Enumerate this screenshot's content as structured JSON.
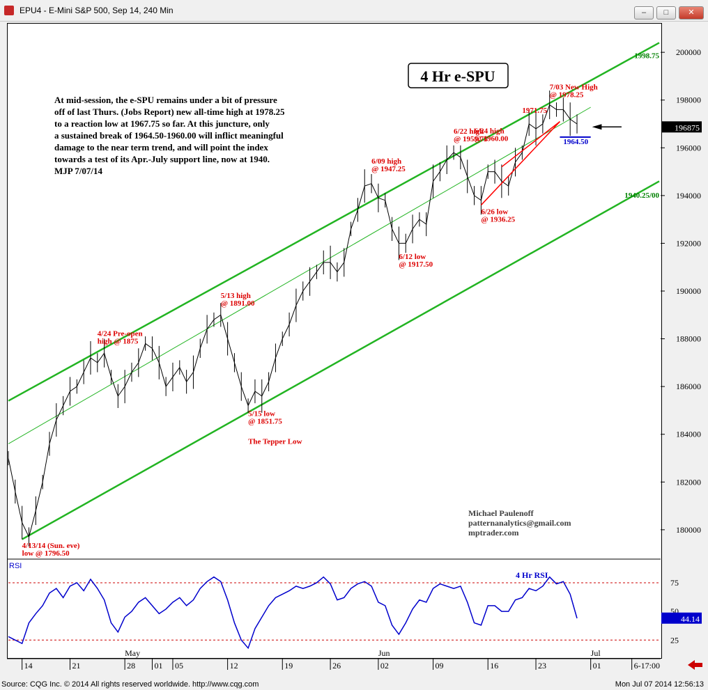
{
  "window": {
    "title": "EPU4 - E-Mini S&P 500, Sep 14, 240 Min",
    "buttons": [
      "minimize",
      "restore",
      "maximize",
      "close"
    ]
  },
  "footer": {
    "source": "Source: CQG Inc. © 2014 All rights reserved worldwide. http://www.cqg.com",
    "timestamp": "Mon Jul 07 2014 12:56:13"
  },
  "colors": {
    "price": "#000000",
    "channel": "#22b422",
    "annotation_red": "#dd0000",
    "rsi_line": "#0000cc",
    "support_blue": "#0000cc",
    "label_green": "#008000"
  },
  "chart_data": [
    {
      "type": "line",
      "title": "4 Hr e-SPU",
      "commentary": [
        "At mid-session, the e-SPU remains under a bit of pressure",
        "off of last Thurs. (Jobs Report) new all-time high at 1978.25",
        "to a reaction low at 1967.75 so far. At this juncture, only",
        "a sustained break of 1964.50-1960.00 will inflict meaningful",
        "damage to the near term trend, and will point the index",
        "towards a test of its Apr.-July support line, now at 1940.",
        "MJP  7/07/14"
      ],
      "author": [
        "Michael Paulenoff",
        "patternanalytics@gmail.com",
        "mptrader.com"
      ],
      "y_ticks": [
        "200000",
        "198000",
        "196000",
        "194000",
        "192000",
        "190000",
        "188000",
        "186000",
        "184000",
        "182000",
        "180000"
      ],
      "ylim": [
        1788,
        2012
      ],
      "last_price_label": "196875",
      "month_labels": [
        {
          "label": "May",
          "x": 17
        },
        {
          "label": "Jun",
          "x": 54
        },
        {
          "label": "Jul",
          "x": 85
        }
      ],
      "x_ticks": [
        {
          "label": "14",
          "x": 2
        },
        {
          "label": "21",
          "x": 9
        },
        {
          "label": "28",
          "x": 17
        },
        {
          "label": "01",
          "x": 21
        },
        {
          "label": "05",
          "x": 24
        },
        {
          "label": "12",
          "x": 32
        },
        {
          "label": "19",
          "x": 40
        },
        {
          "label": "26",
          "x": 47
        },
        {
          "label": "02",
          "x": 54
        },
        {
          "label": "09",
          "x": 62
        },
        {
          "label": "16",
          "x": 70
        },
        {
          "label": "23",
          "x": 77
        },
        {
          "label": "01",
          "x": 85
        },
        {
          "label": "6-17:00",
          "x": 91
        }
      ],
      "price_points": [
        [
          0,
          1830
        ],
        [
          1,
          1816
        ],
        [
          2,
          1803
        ],
        [
          3,
          1797
        ],
        [
          4,
          1808
        ],
        [
          5,
          1820
        ],
        [
          6,
          1836
        ],
        [
          7,
          1846
        ],
        [
          8,
          1852
        ],
        [
          9,
          1858
        ],
        [
          10,
          1860
        ],
        [
          11,
          1866
        ],
        [
          12,
          1872
        ],
        [
          13,
          1870
        ],
        [
          14,
          1874
        ],
        [
          15,
          1864
        ],
        [
          16,
          1856
        ],
        [
          17,
          1860
        ],
        [
          18,
          1866
        ],
        [
          19,
          1870
        ],
        [
          20,
          1878
        ],
        [
          21,
          1876
        ],
        [
          22,
          1870
        ],
        [
          23,
          1860
        ],
        [
          24,
          1864
        ],
        [
          25,
          1868
        ],
        [
          26,
          1862
        ],
        [
          27,
          1866
        ],
        [
          28,
          1876
        ],
        [
          29,
          1884
        ],
        [
          30,
          1888
        ],
        [
          31,
          1890
        ],
        [
          32,
          1880
        ],
        [
          33,
          1870
        ],
        [
          34,
          1860
        ],
        [
          35,
          1852
        ],
        [
          36,
          1858
        ],
        [
          37,
          1856
        ],
        [
          38,
          1862
        ],
        [
          39,
          1872
        ],
        [
          40,
          1880
        ],
        [
          41,
          1886
        ],
        [
          42,
          1894
        ],
        [
          43,
          1900
        ],
        [
          44,
          1904
        ],
        [
          45,
          1908
        ],
        [
          46,
          1912
        ],
        [
          47,
          1912
        ],
        [
          48,
          1908
        ],
        [
          49,
          1912
        ],
        [
          50,
          1926
        ],
        [
          51,
          1934
        ],
        [
          52,
          1944
        ],
        [
          53,
          1945
        ],
        [
          54,
          1939
        ],
        [
          55,
          1938
        ],
        [
          56,
          1926
        ],
        [
          57,
          1920
        ],
        [
          58,
          1920
        ],
        [
          59,
          1926
        ],
        [
          60,
          1930
        ],
        [
          61,
          1928
        ],
        [
          62,
          1946
        ],
        [
          63,
          1950
        ],
        [
          64,
          1955
        ],
        [
          65,
          1958
        ],
        [
          66,
          1956
        ],
        [
          67,
          1948
        ],
        [
          68,
          1940
        ],
        [
          69,
          1938
        ],
        [
          70,
          1950
        ],
        [
          71,
          1950
        ],
        [
          72,
          1946
        ],
        [
          73,
          1944
        ],
        [
          74,
          1954
        ],
        [
          75,
          1958
        ],
        [
          76,
          1970
        ],
        [
          77,
          1968
        ],
        [
          78,
          1970
        ],
        [
          79,
          1978
        ],
        [
          80,
          1976
        ],
        [
          81,
          1976
        ],
        [
          82,
          1972
        ],
        [
          83,
          1970
        ]
      ],
      "trendlines": [
        {
          "name": "upper-channel",
          "points": [
            [
              0,
              1854
            ],
            [
              95,
              2004
            ]
          ]
        },
        {
          "name": "middle-line",
          "points": [
            [
              0,
              1836
            ],
            [
              85,
              1977
            ]
          ]
        },
        {
          "name": "lower-channel",
          "points": [
            [
              2,
              1796
            ],
            [
              95,
              1946
            ]
          ]
        }
      ],
      "annotations": [
        {
          "text": [
            "4/13/14 (Sun. eve)",
            "low @ 1796.50"
          ],
          "x": 2,
          "y": 1796.5,
          "color": "red"
        },
        {
          "text": [
            "4/24 Pre-open",
            "high @ 1875"
          ],
          "x": 13,
          "y": 1875,
          "color": "red"
        },
        {
          "text": [
            "5/13 high",
            "@ 1891.00"
          ],
          "x": 31,
          "y": 1891,
          "color": "red"
        },
        {
          "text": [
            "5/15 low",
            "@ 1851.75"
          ],
          "x": 35,
          "y": 1851.75,
          "color": "red"
        },
        {
          "text": [
            "The Tepper Low"
          ],
          "x": 35,
          "y": 1840,
          "color": "red"
        },
        {
          "text": [
            "6/09 high",
            "@ 1947.25"
          ],
          "x": 53,
          "y": 1947.25,
          "color": "red"
        },
        {
          "text": [
            "6/12 low",
            "@ 1917.50"
          ],
          "x": 57,
          "y": 1917.5,
          "color": "red"
        },
        {
          "text": [
            "6/22 high",
            "@ 1959.75"
          ],
          "x": 65,
          "y": 1959.75,
          "color": "red"
        },
        {
          "text": [
            "6/24 high",
            "@ 1960.00"
          ],
          "x": 68,
          "y": 1960,
          "color": "red"
        },
        {
          "text": [
            "6/26 low",
            "@ 1936.25"
          ],
          "x": 69,
          "y": 1936.25,
          "color": "red"
        },
        {
          "text": [
            "1971.75"
          ],
          "x": 75,
          "y": 1971.75,
          "color": "red"
        },
        {
          "text": [
            "7/03 New High",
            "@ 1978.25"
          ],
          "x": 79,
          "y": 1978.25,
          "color": "red"
        },
        {
          "text": [
            "1964.50"
          ],
          "x": 81,
          "y": 1964.5,
          "color": "blue"
        },
        {
          "text": [
            "1998.75"
          ],
          "x": 95,
          "y": 1998.75,
          "color": "green"
        },
        {
          "text": [
            "1940.25/00"
          ],
          "x": 95,
          "y": 1940.25,
          "color": "green"
        }
      ]
    },
    {
      "type": "line",
      "name": "RSI",
      "title": "4 Hr RSI",
      "ylim": [
        10,
        95
      ],
      "y_ticks": [
        "75",
        "50",
        "25"
      ],
      "last_value_label": "44.14",
      "levels": [
        75,
        25
      ],
      "values": [
        [
          0,
          28
        ],
        [
          1,
          25
        ],
        [
          2,
          22
        ],
        [
          3,
          40
        ],
        [
          4,
          48
        ],
        [
          5,
          55
        ],
        [
          6,
          66
        ],
        [
          7,
          70
        ],
        [
          8,
          62
        ],
        [
          9,
          72
        ],
        [
          10,
          75
        ],
        [
          11,
          68
        ],
        [
          12,
          78
        ],
        [
          13,
          70
        ],
        [
          14,
          60
        ],
        [
          15,
          40
        ],
        [
          16,
          32
        ],
        [
          17,
          45
        ],
        [
          18,
          50
        ],
        [
          19,
          58
        ],
        [
          20,
          62
        ],
        [
          21,
          55
        ],
        [
          22,
          48
        ],
        [
          23,
          52
        ],
        [
          24,
          58
        ],
        [
          25,
          62
        ],
        [
          26,
          55
        ],
        [
          27,
          60
        ],
        [
          28,
          70
        ],
        [
          29,
          76
        ],
        [
          30,
          80
        ],
        [
          31,
          76
        ],
        [
          32,
          60
        ],
        [
          33,
          40
        ],
        [
          34,
          25
        ],
        [
          35,
          18
        ],
        [
          36,
          35
        ],
        [
          37,
          45
        ],
        [
          38,
          55
        ],
        [
          39,
          62
        ],
        [
          40,
          65
        ],
        [
          41,
          68
        ],
        [
          42,
          72
        ],
        [
          43,
          70
        ],
        [
          44,
          72
        ],
        [
          45,
          75
        ],
        [
          46,
          80
        ],
        [
          47,
          74
        ],
        [
          48,
          60
        ],
        [
          49,
          62
        ],
        [
          50,
          70
        ],
        [
          51,
          74
        ],
        [
          52,
          76
        ],
        [
          53,
          72
        ],
        [
          54,
          58
        ],
        [
          55,
          55
        ],
        [
          56,
          38
        ],
        [
          57,
          30
        ],
        [
          58,
          40
        ],
        [
          59,
          52
        ],
        [
          60,
          60
        ],
        [
          61,
          58
        ],
        [
          62,
          70
        ],
        [
          63,
          74
        ],
        [
          64,
          72
        ],
        [
          65,
          70
        ],
        [
          66,
          72
        ],
        [
          67,
          58
        ],
        [
          68,
          40
        ],
        [
          69,
          38
        ],
        [
          70,
          55
        ],
        [
          71,
          55
        ],
        [
          72,
          50
        ],
        [
          73,
          50
        ],
        [
          74,
          60
        ],
        [
          75,
          62
        ],
        [
          76,
          70
        ],
        [
          77,
          68
        ],
        [
          78,
          72
        ],
        [
          79,
          80
        ],
        [
          80,
          74
        ],
        [
          81,
          76
        ],
        [
          82,
          65
        ],
        [
          83,
          44
        ]
      ]
    }
  ]
}
